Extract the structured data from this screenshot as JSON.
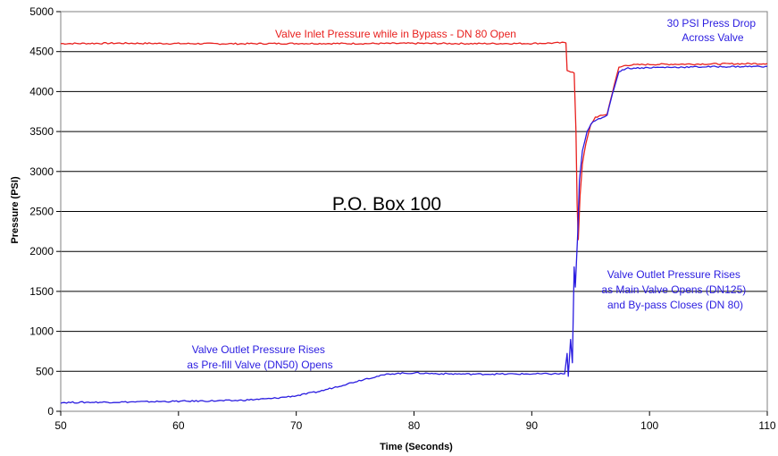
{
  "chart_data": {
    "type": "line",
    "title": "",
    "xlabel": "Time (Seconds)",
    "ylabel": "Pressure (PSI)",
    "xlim": [
      50,
      110
    ],
    "ylim": [
      0,
      5000
    ],
    "xticks": [
      50,
      60,
      70,
      80,
      90,
      100,
      110
    ],
    "yticks": [
      0,
      500,
      1000,
      1500,
      2000,
      2500,
      3000,
      3500,
      4000,
      4500,
      5000
    ],
    "grid": "horizontal",
    "series": [
      {
        "name": "Valve Inlet Pressure",
        "color": "#e8201e",
        "points": [
          [
            50,
            4600
          ],
          [
            55,
            4605
          ],
          [
            60,
            4600
          ],
          [
            65,
            4598
          ],
          [
            70,
            4602
          ],
          [
            75,
            4600
          ],
          [
            80,
            4603
          ],
          [
            85,
            4600
          ],
          [
            90,
            4602
          ],
          [
            92.9,
            4610
          ],
          [
            93.0,
            4270
          ],
          [
            93.3,
            4250
          ],
          [
            93.6,
            4230
          ],
          [
            93.75,
            3500
          ],
          [
            93.85,
            2600
          ],
          [
            93.95,
            2150
          ],
          [
            94.1,
            2700
          ],
          [
            94.3,
            3100
          ],
          [
            94.6,
            3350
          ],
          [
            95.0,
            3580
          ],
          [
            95.4,
            3680
          ],
          [
            96.0,
            3700
          ],
          [
            96.4,
            3720
          ],
          [
            96.7,
            3900
          ],
          [
            97.0,
            4080
          ],
          [
            97.4,
            4300
          ],
          [
            98.0,
            4330
          ],
          [
            100,
            4340
          ],
          [
            105,
            4345
          ],
          [
            110,
            4350
          ]
        ]
      },
      {
        "name": "Valve Outlet Pressure",
        "color": "#2a1ce0",
        "points": [
          [
            50,
            110
          ],
          [
            55,
            115
          ],
          [
            60,
            125
          ],
          [
            65,
            135
          ],
          [
            68,
            160
          ],
          [
            70,
            195
          ],
          [
            72,
            250
          ],
          [
            74,
            330
          ],
          [
            76,
            410
          ],
          [
            78,
            470
          ],
          [
            80,
            480
          ],
          [
            82,
            470
          ],
          [
            85,
            465
          ],
          [
            88,
            466
          ],
          [
            91,
            468
          ],
          [
            92.8,
            470
          ],
          [
            93.0,
            720
          ],
          [
            93.1,
            440
          ],
          [
            93.3,
            900
          ],
          [
            93.45,
            600
          ],
          [
            93.6,
            1800
          ],
          [
            93.7,
            1550
          ],
          [
            93.9,
            2200
          ],
          [
            94.05,
            2900
          ],
          [
            94.3,
            3250
          ],
          [
            94.7,
            3500
          ],
          [
            95.2,
            3630
          ],
          [
            96.0,
            3680
          ],
          [
            96.4,
            3700
          ],
          [
            96.7,
            3880
          ],
          [
            97.0,
            4050
          ],
          [
            97.4,
            4250
          ],
          [
            98.0,
            4290
          ],
          [
            100,
            4300
          ],
          [
            105,
            4310
          ],
          [
            110,
            4315
          ]
        ]
      }
    ],
    "annotations": [
      {
        "id": "inlet",
        "lines": [
          "Valve Inlet Pressure while in Bypass - DN 80 Open"
        ],
        "color": "#e8201e"
      },
      {
        "id": "drop",
        "lines": [
          "30 PSI Press Drop",
          "Across Valve"
        ],
        "color": "#2a1ce0"
      },
      {
        "id": "main",
        "lines": [
          "Valve Outlet Pressure Rises",
          "as Main Valve Opens (DN125)",
          "and By-pass Closes (DN 80)"
        ],
        "color": "#2a1ce0"
      },
      {
        "id": "prefill",
        "lines": [
          "Valve Outlet Pressure Rises",
          "as Pre-fill Valve (DN50) Opens"
        ],
        "color": "#2a1ce0"
      }
    ],
    "overlay_text": "P.O. Box 100"
  }
}
